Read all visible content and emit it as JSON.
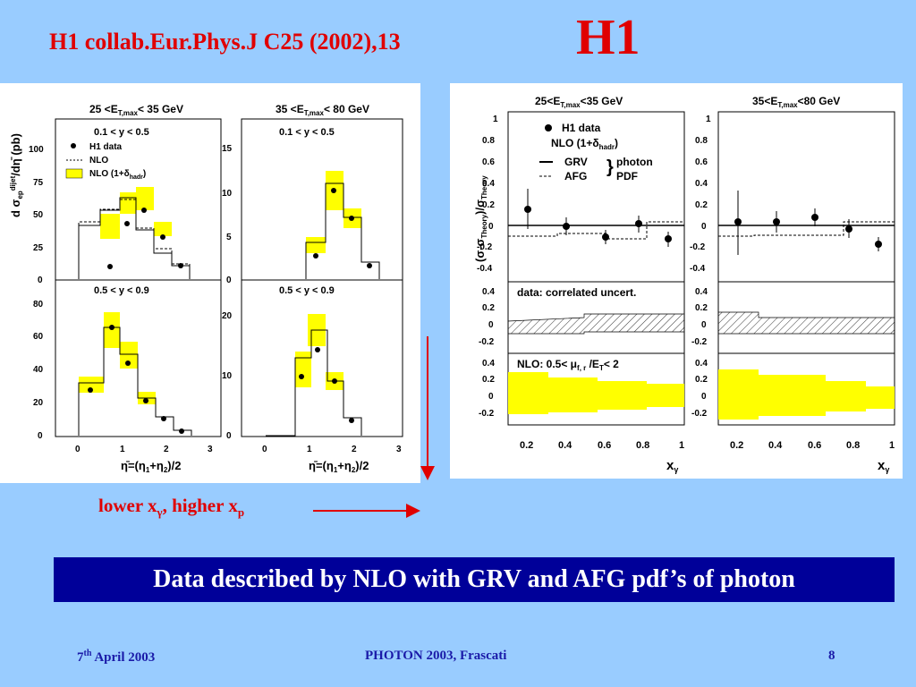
{
  "slide": {
    "title": "H1 collab.Eur.Phys.J C25 (2002),13",
    "logo": "H1",
    "caption_main": "lower x",
    "caption_sub1": "γ",
    "caption_mid": ", higher x",
    "caption_sub2": "p",
    "banner": "Data described by NLO with GRV and AFG pdf’s of photon",
    "footer_date_day": "7",
    "footer_date_sup": "th",
    "footer_date_rest": " April 2003",
    "footer_conf": "PHOTON 2003, Frascati",
    "page_number": "8"
  },
  "left_figure": {
    "col1_header": "25 <E",
    "col1_header_sub": "T,max",
    "col1_header_end": "< 35 GeV",
    "col2_header": "35 <E",
    "col2_header_sub": "T,max",
    "col2_header_end": "< 80 GeV",
    "ylabel": "d σ",
    "ylabel_sub": "ep",
    "ylabel_sup": "dijet",
    "ylabel_end": "/dη̄ (pb)",
    "cut_low": "0.1 < y < 0.5",
    "cut_high": "0.5 < y < 0.9",
    "legend_data": "H1 data",
    "legend_nlo": "NLO",
    "legend_nlo_hadr": "NLO (1+δ",
    "legend_nlo_hadr_sub": "hadr",
    "legend_nlo_hadr_end": ")",
    "xlabel": "η̄=(η",
    "xlabel_sub1": "1",
    "xlabel_plus": "+η",
    "xlabel_sub2": "2",
    "xlabel_end": ")/2",
    "x_ticks": [
      "0",
      "1",
      "2",
      "3"
    ],
    "y_ticks_tl": [
      "0",
      "25",
      "50",
      "75",
      "100"
    ],
    "y_ticks_tr": [
      "0",
      "5",
      "10",
      "15"
    ],
    "y_ticks_bl": [
      "0",
      "20",
      "40",
      "60",
      "80"
    ],
    "y_ticks_br": [
      "0",
      "10",
      "20"
    ]
  },
  "right_figure": {
    "col1_header": "25<E",
    "col1_header_sub": "T,max",
    "col1_header_end": "<35 GeV",
    "col2_header": "35<E",
    "col2_header_sub": "T,max",
    "col2_header_end": "<80 GeV",
    "ylabel": "(σ-σ",
    "ylabel_sub": "Theory",
    "ylabel_end": ")/σ",
    "ylabel_sub2": "Theory",
    "legend_data": "H1 data",
    "legend_nlo": "NLO (1+δ",
    "legend_nlo_sub": "hadr",
    "legend_nlo_end": ")",
    "legend_grv": "GRV",
    "legend_afg": "AFG",
    "legend_photon": "photon",
    "legend_pdf": "PDF",
    "band1_label": "data: correlated uncert.",
    "band2_label": "NLO: 0.5< μ",
    "band2_label_sub": "f, r",
    "band2_label_end": " /E",
    "band2_label_sub2": "T",
    "band2_label_tail": "< 2",
    "xlabel": "x",
    "xlabel_sub": "γ",
    "x_ticks": [
      "0.2",
      "0.4",
      "0.6",
      "0.8",
      "1"
    ],
    "y_ticks_main": [
      "-0.4",
      "-0.2",
      "0",
      "0.2",
      "0.4",
      "0.6",
      "0.8",
      "1"
    ],
    "y_ticks_band": [
      "-0.2",
      "0",
      "0.2",
      "0.4"
    ]
  },
  "colors": {
    "background": "#99ccff",
    "title": "#e00000",
    "banner": "#000099",
    "footer": "#1a1aa8",
    "band": "#ffff00"
  }
}
